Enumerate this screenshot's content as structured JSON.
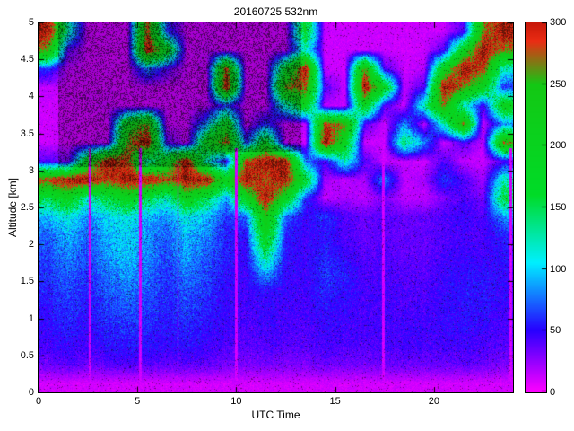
{
  "figure": {
    "title": "20160725 532nm",
    "xlabel": "UTC Time",
    "ylabel": "Altitude [km]"
  },
  "chart_data": {
    "type": "heatmap",
    "title": "20160725 532nm",
    "xlabel": "UTC Time",
    "ylabel": "Altitude [km]",
    "x_range": [
      0,
      24
    ],
    "y_range": [
      0,
      5
    ],
    "x_ticks": [
      0,
      5,
      10,
      15,
      20
    ],
    "y_ticks": [
      0,
      0.5,
      1,
      1.5,
      2,
      2.5,
      3,
      3.5,
      4,
      4.5,
      5
    ],
    "colorbar": {
      "range": [
        0,
        300
      ],
      "ticks": [
        0,
        50,
        100,
        150,
        200,
        250,
        300
      ]
    },
    "colormap_stops": [
      [
        0,
        [
          255,
          0,
          255
        ]
      ],
      [
        50,
        [
          40,
          0,
          255
        ]
      ],
      [
        105,
        [
          0,
          240,
          255
        ]
      ],
      [
        160,
        [
          0,
          220,
          40
        ]
      ],
      [
        250,
        [
          20,
          200,
          20
        ]
      ],
      [
        285,
        [
          235,
          45,
          20
        ]
      ],
      [
        300,
        [
          200,
          25,
          10
        ]
      ],
      [
        340,
        [
          70,
          22,
          8
        ]
      ]
    ],
    "x_bin_hours": 1,
    "y_bin_km": 0.25,
    "grid_rows_top_to_bottom": true,
    "grid": [
      [
        310,
        120,
        12,
        12,
        12,
        280,
        60,
        12,
        12,
        12,
        12,
        12,
        12,
        180,
        12,
        12,
        12,
        12,
        12,
        12,
        12,
        40,
        260,
        310
      ],
      [
        260,
        40,
        12,
        12,
        12,
        310,
        200,
        12,
        15,
        12,
        12,
        12,
        15,
        120,
        12,
        12,
        12,
        12,
        12,
        12,
        40,
        200,
        310,
        260
      ],
      [
        60,
        15,
        12,
        12,
        12,
        80,
        40,
        12,
        15,
        280,
        12,
        12,
        180,
        310,
        12,
        12,
        260,
        40,
        12,
        15,
        200,
        310,
        280,
        120
      ],
      [
        15,
        12,
        12,
        12,
        12,
        15,
        12,
        12,
        12,
        310,
        15,
        12,
        260,
        280,
        40,
        12,
        310,
        200,
        15,
        40,
        310,
        260,
        200,
        60
      ],
      [
        12,
        12,
        12,
        15,
        12,
        12,
        12,
        12,
        15,
        60,
        12,
        12,
        120,
        200,
        15,
        12,
        200,
        40,
        12,
        120,
        260,
        120,
        40,
        200
      ],
      [
        12,
        12,
        12,
        12,
        200,
        260,
        15,
        12,
        80,
        200,
        12,
        60,
        12,
        15,
        280,
        260,
        40,
        12,
        80,
        15,
        120,
        260,
        12,
        80
      ],
      [
        12,
        12,
        12,
        15,
        260,
        310,
        40,
        12,
        200,
        280,
        60,
        200,
        12,
        12,
        310,
        200,
        12,
        12,
        140,
        80,
        12,
        40,
        15,
        260
      ],
      [
        40,
        30,
        200,
        310,
        280,
        120,
        200,
        310,
        120,
        40,
        280,
        310,
        310,
        80,
        40,
        120,
        40,
        12,
        15,
        12,
        40,
        15,
        12,
        40
      ],
      [
        280,
        310,
        310,
        280,
        310,
        310,
        280,
        310,
        310,
        200,
        310,
        280,
        310,
        180,
        20,
        15,
        20,
        80,
        15,
        20,
        60,
        40,
        20,
        120
      ],
      [
        160,
        200,
        120,
        160,
        200,
        160,
        120,
        200,
        160,
        80,
        200,
        310,
        200,
        60,
        15,
        20,
        15,
        30,
        15,
        15,
        30,
        40,
        30,
        160
      ],
      [
        90,
        110,
        80,
        100,
        110,
        90,
        80,
        110,
        90,
        60,
        70,
        240,
        70,
        45,
        60,
        40,
        35,
        40,
        35,
        35,
        40,
        45,
        40,
        80
      ],
      [
        70,
        90,
        70,
        90,
        100,
        80,
        70,
        90,
        80,
        55,
        50,
        200,
        55,
        45,
        50,
        40,
        35,
        38,
        35,
        35,
        40,
        42,
        40,
        55
      ],
      [
        65,
        80,
        65,
        85,
        95,
        80,
        65,
        85,
        70,
        55,
        45,
        150,
        50,
        45,
        55,
        45,
        38,
        40,
        36,
        36,
        42,
        45,
        42,
        50
      ],
      [
        60,
        70,
        60,
        75,
        85,
        75,
        60,
        75,
        65,
        50,
        45,
        90,
        48,
        44,
        60,
        55,
        40,
        42,
        38,
        38,
        44,
        48,
        50,
        48
      ],
      [
        55,
        65,
        55,
        68,
        75,
        68,
        58,
        68,
        60,
        48,
        44,
        50,
        46,
        44,
        55,
        50,
        42,
        44,
        40,
        40,
        46,
        50,
        52,
        46
      ],
      [
        50,
        60,
        52,
        62,
        68,
        62,
        55,
        62,
        55,
        46,
        42,
        46,
        44,
        42,
        50,
        46,
        42,
        44,
        42,
        42,
        46,
        50,
        50,
        44
      ],
      [
        48,
        55,
        48,
        56,
        60,
        56,
        52,
        56,
        50,
        44,
        40,
        44,
        42,
        40,
        46,
        44,
        42,
        44,
        44,
        44,
        46,
        48,
        46,
        42
      ],
      [
        42,
        48,
        42,
        50,
        52,
        50,
        46,
        50,
        46,
        40,
        38,
        40,
        38,
        38,
        42,
        40,
        40,
        42,
        42,
        42,
        42,
        44,
        42,
        38
      ],
      [
        34,
        38,
        34,
        38,
        40,
        38,
        36,
        38,
        36,
        32,
        30,
        32,
        30,
        30,
        34,
        32,
        32,
        34,
        34,
        34,
        34,
        36,
        34,
        30
      ],
      [
        10,
        10,
        10,
        10,
        10,
        10,
        10,
        10,
        10,
        10,
        10,
        10,
        10,
        10,
        10,
        10,
        10,
        10,
        10,
        10,
        10,
        10,
        10,
        10
      ]
    ],
    "rain_stripes": [
      {
        "t": 2.6,
        "w": 0.05
      },
      {
        "t": 5.15,
        "w": 0.09
      },
      {
        "t": 7.05,
        "w": 0.035
      },
      {
        "t": 10.0,
        "w": 0.05
      },
      {
        "t": 17.45,
        "w": 0.06
      },
      {
        "t": 23.88,
        "w": 0.06
      }
    ],
    "attenuation_regions": [
      {
        "t0": 1.0,
        "t1": 9.5,
        "a0": 3.05
      },
      {
        "t0": 9.5,
        "t1": 13.3,
        "a0": 3.25
      }
    ]
  }
}
